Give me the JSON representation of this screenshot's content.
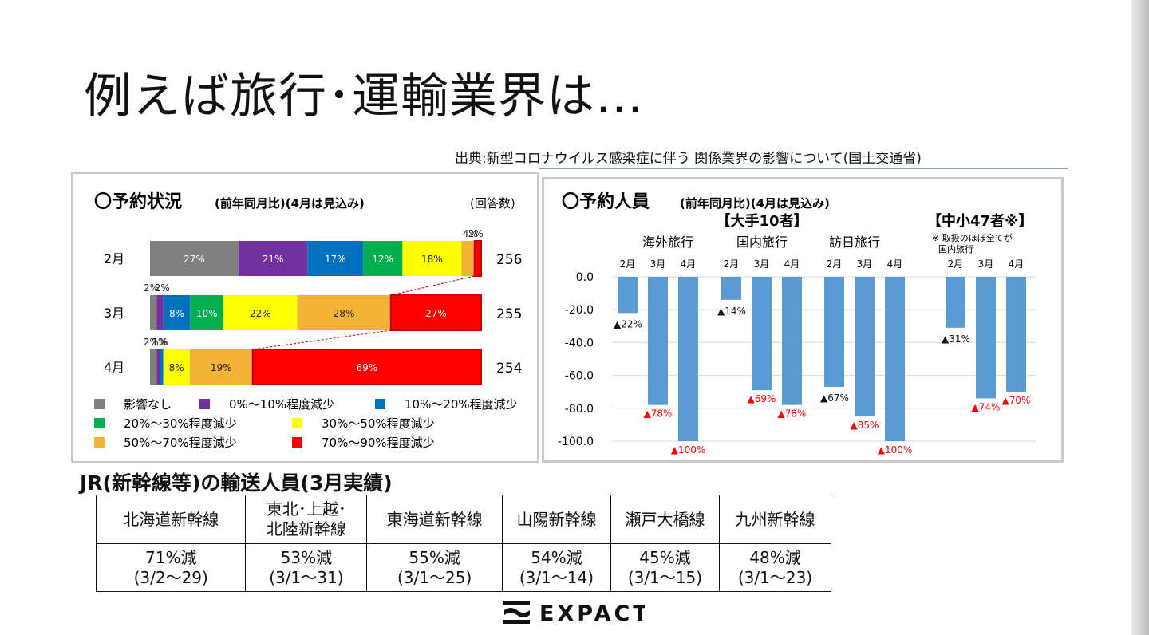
{
  "page": {
    "title": "例えば旅行･運輸業界は…",
    "source": "出典:新型コロナウイルス感染症に伴う 関係業界の影響について(国土交通省)",
    "brand": "EXPACT"
  },
  "colors": {
    "gray": "#808080",
    "purple": "#7030a0",
    "blue": "#0070c0",
    "green": "#00b050",
    "yellow": "#ffff00",
    "orange": "#f5b335",
    "red": "#ff0000",
    "bar_blue": "#5b9bd5",
    "negative_label": "#ff0000"
  },
  "chart_data": [
    {
      "type": "bar",
      "orientation": "horizontal",
      "stacked": true,
      "title": "〇予約状況",
      "subtitle": "(前年同月比)(4月は見込み)",
      "count_header": "(回答数)",
      "categories": [
        "2月",
        "3月",
        "4月"
      ],
      "respondents": [
        256,
        255,
        254
      ],
      "series": [
        {
          "name": "影響なし",
          "color_key": "gray",
          "values": [
            27,
            2,
            2
          ],
          "labels": [
            "27%",
            "2%",
            "2%"
          ]
        },
        {
          "name": "0%～10%程度減少",
          "color_key": "purple",
          "values": [
            21,
            2,
            1
          ],
          "labels": [
            "21%",
            "2%",
            "1%"
          ]
        },
        {
          "name": "10%～20%程度減少",
          "color_key": "blue",
          "values": [
            17,
            8,
            1
          ],
          "labels": [
            "17%",
            "8%",
            "1%"
          ]
        },
        {
          "name": "20%～30%程度減少",
          "color_key": "green",
          "values": [
            12,
            10,
            0
          ],
          "labels": [
            "12%",
            "10%",
            ""
          ]
        },
        {
          "name": "30%～50%程度減少",
          "color_key": "yellow",
          "values": [
            18,
            22,
            8
          ],
          "labels": [
            "18%",
            "22%",
            "8%"
          ]
        },
        {
          "name": "50%～70%程度減少",
          "color_key": "orange",
          "values": [
            4,
            28,
            19
          ],
          "labels": [
            "4%",
            "28%",
            "19%"
          ]
        },
        {
          "name": "70%～90%程度減少",
          "color_key": "red",
          "values": [
            2,
            27,
            69
          ],
          "labels": [
            "2%",
            "27%",
            "69%"
          ]
        }
      ],
      "legend_position": "bottom"
    },
    {
      "type": "bar",
      "orientation": "vertical",
      "title": "〇予約人員",
      "subtitle": "(前年同月比)(4月は見込み)",
      "ylim": [
        -100,
        0
      ],
      "yticks": [
        "0.0",
        "-20.0",
        "-40.0",
        "-60.0",
        "-80.0",
        "-100.0"
      ],
      "grid": true,
      "groups": [
        {
          "header": "【大手10者】",
          "note": "",
          "subgroups": [
            {
              "name": "海外旅行",
              "months": [
                "2月",
                "3月",
                "4月"
              ],
              "values": [
                -22,
                -78,
                -100
              ],
              "labels": [
                "▲22%",
                "▲78%",
                "▲100%"
              ]
            },
            {
              "name": "国内旅行",
              "months": [
                "2月",
                "3月",
                "4月"
              ],
              "values": [
                -14,
                -69,
                -78
              ],
              "labels": [
                "▲14%",
                "▲69%",
                "▲78%"
              ]
            },
            {
              "name": "訪日旅行",
              "months": [
                "2月",
                "3月",
                "4月"
              ],
              "values": [
                -67,
                -85,
                -100
              ],
              "labels": [
                "▲67%",
                "▲85%",
                "▲100%"
              ]
            }
          ]
        },
        {
          "header": "【中小47者※】",
          "note": "※ 取扱のほぼ全てが\n国内旅行",
          "subgroups": [
            {
              "name": "",
              "months": [
                "2月",
                "3月",
                "4月"
              ],
              "values": [
                -31,
                -74,
                -70
              ],
              "labels": [
                "▲31%",
                "▲74%",
                "▲70%"
              ]
            }
          ]
        }
      ]
    }
  ],
  "jr": {
    "title": "JR(新幹線等)の輸送人員(3月実績)",
    "columns": [
      {
        "name": [
          "北海道新幹線"
        ],
        "value": "71%減",
        "period": "(3/2～29)"
      },
      {
        "name": [
          "東北･上越･",
          "北陸新幹線"
        ],
        "value": "53%減",
        "period": "(3/1～31)"
      },
      {
        "name": [
          "東海道新幹線"
        ],
        "value": "55%減",
        "period": "(3/1～25)"
      },
      {
        "name": [
          "山陽新幹線"
        ],
        "value": "54%減",
        "period": "(3/1～14)"
      },
      {
        "name": [
          "瀬戸大橋線"
        ],
        "value": "45%減",
        "period": "(3/1～15)"
      },
      {
        "name": [
          "九州新幹線"
        ],
        "value": "48%減",
        "period": "(3/1～23)"
      }
    ]
  }
}
